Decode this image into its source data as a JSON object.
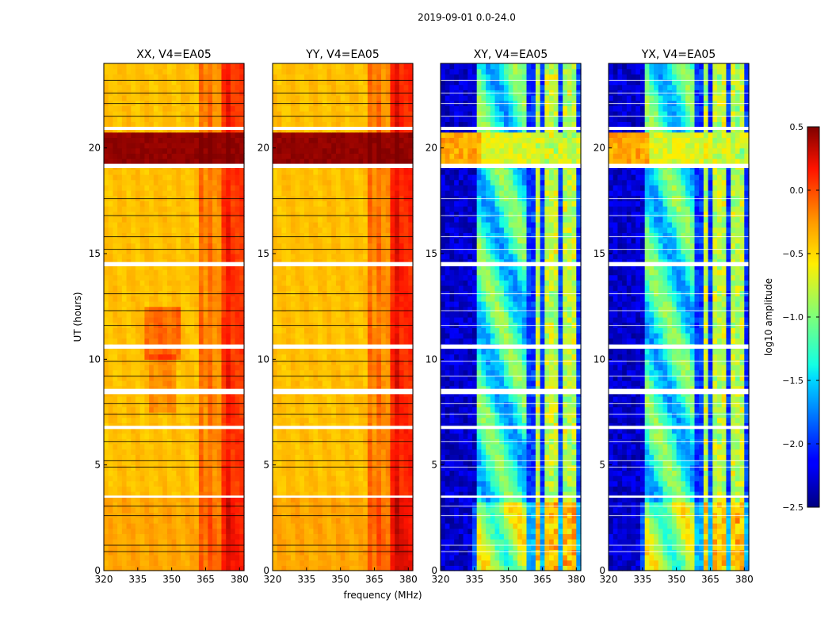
{
  "figure_title": "2019-09-01 0.0-24.0",
  "chart_data": {
    "type": "heatmap",
    "title": "2019-09-01 0.0-24.0",
    "xlabel": "frequency (MHz)",
    "ylabel": "UT (hours)",
    "xlim": [
      320,
      382
    ],
    "ylim": [
      0,
      24
    ],
    "x_ticks": [
      320,
      335,
      350,
      365,
      380
    ],
    "y_ticks": [
      0,
      5,
      10,
      15,
      20
    ],
    "panels": [
      {
        "title": "XX, V4=EA05",
        "polarization": "XX",
        "kind": "parallel"
      },
      {
        "title": "YY, V4=EA05",
        "polarization": "YY",
        "kind": "parallel"
      },
      {
        "title": "XY, V4=EA05",
        "polarization": "XY",
        "kind": "cross"
      },
      {
        "title": "YX, V4=EA05",
        "polarization": "YX",
        "kind": "cross"
      }
    ],
    "colorbar": {
      "label": "log10 amplitude",
      "range": [
        -2.5,
        0.5
      ],
      "ticks": [
        "0.5",
        "0.0",
        "−0.5",
        "−1.0",
        "−1.5",
        "−2.0",
        "−2.5"
      ],
      "colormap": "jet"
    },
    "white_gaps_hours": [
      [
        19.05,
        19.25
      ],
      [
        14.4,
        14.6
      ],
      [
        10.5,
        10.7
      ],
      [
        8.35,
        8.6
      ],
      [
        6.7,
        6.85
      ],
      [
        3.45,
        3.55
      ],
      [
        20.85,
        21.0
      ]
    ],
    "rfi_channels_mhz": [
      363,
      367,
      370,
      375,
      378
    ]
  }
}
